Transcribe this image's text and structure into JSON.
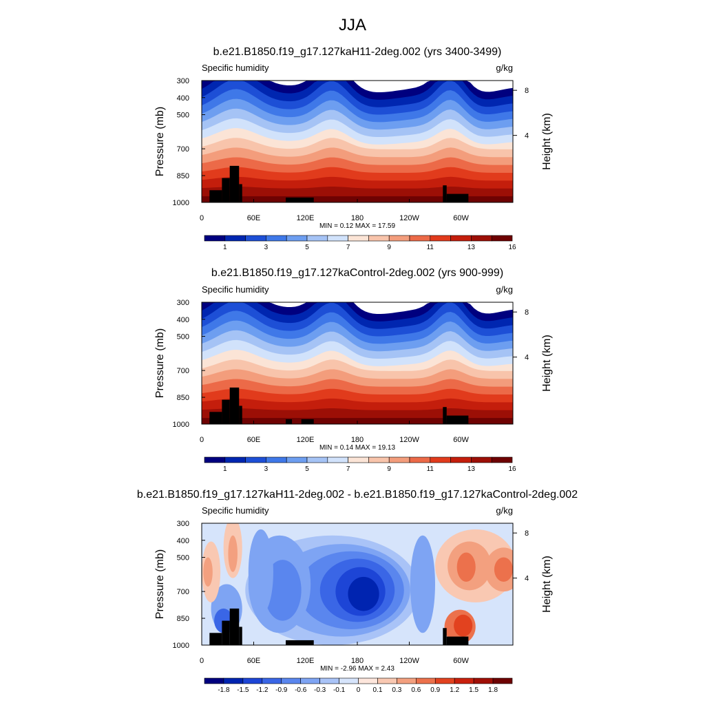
{
  "figure": {
    "suptitle": "JJA"
  },
  "chart_data": [
    {
      "type": "heatmap",
      "title": "b.e21.B1850.f19_g17.127kaH11-2deg.002 (yrs 3400-3499)",
      "left_label": "Specific humidity",
      "right_label": "g/kg",
      "ylabel": "Pressure (mb)",
      "ylabel_right": "Height (km)",
      "yticks": [
        "300",
        "400",
        "500",
        "700",
        "850",
        "1000"
      ],
      "yticks_right": [
        "8",
        "4"
      ],
      "xticks": [
        "0",
        "60E",
        "120E",
        "180",
        "120W",
        "60W"
      ],
      "stats": "MIN =   0.12  MAX =  17.59",
      "field_min": 0.12,
      "field_max": 17.59,
      "colorbar_labels": [
        "1",
        "3",
        "5",
        "7",
        "9",
        "11",
        "13",
        "16"
      ],
      "colorbar_colors": [
        "#00007f",
        "#0026b0",
        "#1d4fd6",
        "#3f78e8",
        "#6d9ef0",
        "#a5c3f5",
        "#d1e2fb",
        "#fbe4d6",
        "#f8c4ab",
        "#f39d7c",
        "#ec6a48",
        "#e13b1c",
        "#c41e0c",
        "#9c0f06",
        "#6e0202"
      ]
    },
    {
      "type": "heatmap",
      "title": "b.e21.B1850.f19_g17.127kaControl-2deg.002 (yrs 900-999)",
      "left_label": "Specific humidity",
      "right_label": "g/kg",
      "ylabel": "Pressure (mb)",
      "ylabel_right": "Height (km)",
      "yticks": [
        "300",
        "400",
        "500",
        "700",
        "850",
        "1000"
      ],
      "yticks_right": [
        "8",
        "4"
      ],
      "xticks": [
        "0",
        "60E",
        "120E",
        "180",
        "120W",
        "60W"
      ],
      "stats": "MIN =   0.14  MAX =  19.13",
      "field_min": 0.14,
      "field_max": 19.13,
      "colorbar_labels": [
        "1",
        "3",
        "5",
        "7",
        "9",
        "11",
        "13",
        "16"
      ],
      "colorbar_colors": [
        "#00007f",
        "#0026b0",
        "#1d4fd6",
        "#3f78e8",
        "#6d9ef0",
        "#a5c3f5",
        "#d1e2fb",
        "#fbe4d6",
        "#f8c4ab",
        "#f39d7c",
        "#ec6a48",
        "#e13b1c",
        "#c41e0c",
        "#9c0f06",
        "#6e0202"
      ]
    },
    {
      "type": "heatmap",
      "title": "b.e21.B1850.f19_g17.127kaH11-2deg.002 - b.e21.B1850.f19_g17.127kaControl-2deg.002",
      "left_label": "Specific humidity",
      "right_label": "g/kg",
      "ylabel": "Pressure (mb)",
      "ylabel_right": "Height (km)",
      "yticks": [
        "300",
        "400",
        "500",
        "700",
        "850",
        "1000"
      ],
      "yticks_right": [
        "8",
        "4"
      ],
      "xticks": [
        "0",
        "60E",
        "120E",
        "180",
        "120W",
        "60W"
      ],
      "stats": "MIN =  -2.96  MAX =   2.43",
      "field_min": -2.96,
      "field_max": 2.43,
      "colorbar_labels": [
        "-1.8",
        "-1.5",
        "-1.2",
        "-0.9",
        "-0.6",
        "-0.3",
        "-0.1",
        "0",
        "0.1",
        "0.3",
        "0.6",
        "0.9",
        "1.2",
        "1.5",
        "1.8"
      ],
      "colorbar_colors": [
        "#00007f",
        "#0024b0",
        "#1d45d6",
        "#3a66e6",
        "#5a86ee",
        "#7ea4f3",
        "#a9c3f7",
        "#d6e4fb",
        "#fde6dc",
        "#f9c8b2",
        "#f3a07f",
        "#ec714c",
        "#e2421f",
        "#c9200d",
        "#a00f06",
        "#6e0202"
      ]
    }
  ]
}
